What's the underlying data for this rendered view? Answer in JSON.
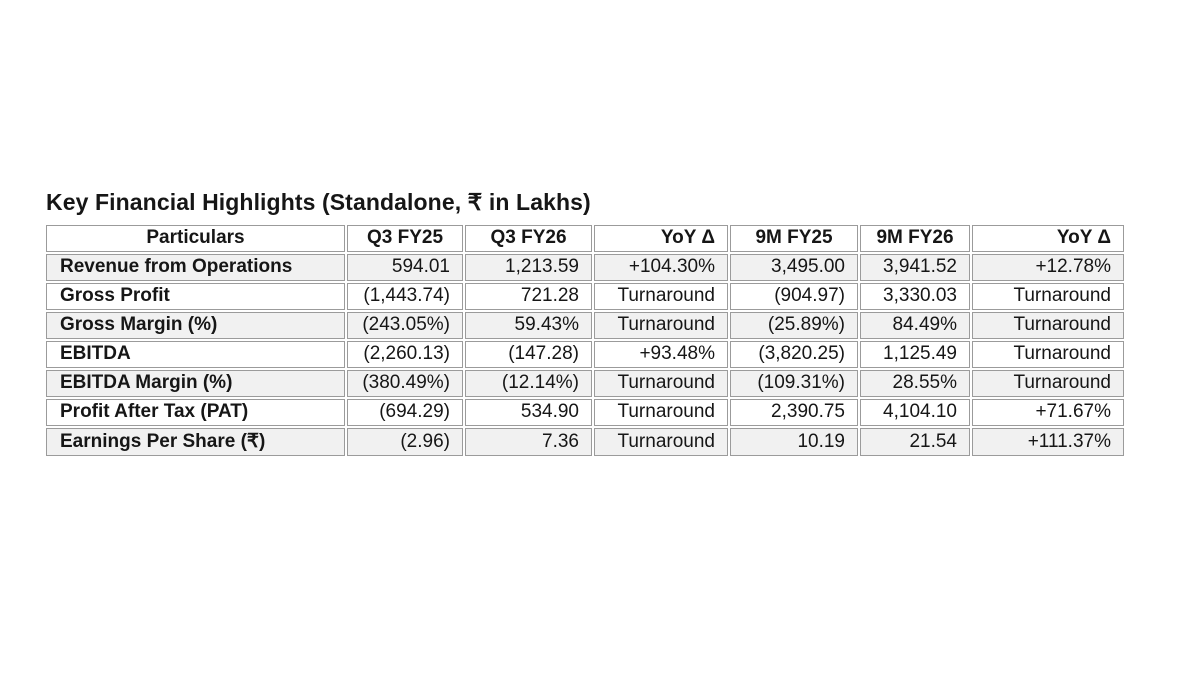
{
  "page": {
    "title": "Key Financial Highlights (Standalone, ₹ in Lakhs)"
  },
  "table": {
    "columns": [
      "Particulars",
      "Q3 FY25",
      "Q3 FY26",
      "YoY Δ",
      "9M FY25",
      "9M FY26",
      "YoY Δ"
    ],
    "rows": [
      [
        "Revenue from Operations",
        "594.01",
        "1,213.59",
        "+104.30%",
        "3,495.00",
        "3,941.52",
        "+12.78%"
      ],
      [
        "Gross Profit",
        "(1,443.74)",
        "721.28",
        "Turnaround",
        "(904.97)",
        "3,330.03",
        "Turnaround"
      ],
      [
        "Gross Margin (%)",
        "(243.05%)",
        "59.43%",
        "Turnaround",
        "(25.89%)",
        "84.49%",
        "Turnaround"
      ],
      [
        "EBITDA",
        "(2,260.13)",
        "(147.28)",
        "+93.48%",
        "(3,820.25)",
        "1,125.49",
        "Turnaround"
      ],
      [
        "EBITDA Margin (%)",
        "(380.49%)",
        "(12.14%)",
        "Turnaround",
        "(109.31%)",
        "28.55%",
        "Turnaround"
      ],
      [
        "Profit After Tax (PAT)",
        "(694.29)",
        "534.90",
        "Turnaround",
        "2,390.75",
        "4,104.10",
        "+71.67%"
      ],
      [
        "Earnings Per Share (₹)",
        "(2.96)",
        "7.36",
        "Turnaround",
        "10.19",
        "21.54",
        "+111.37%"
      ]
    ]
  },
  "colors": {
    "band_row": "#f1f1f1",
    "border": "#9b9b9b",
    "text": "#161616",
    "background": "#ffffff"
  }
}
